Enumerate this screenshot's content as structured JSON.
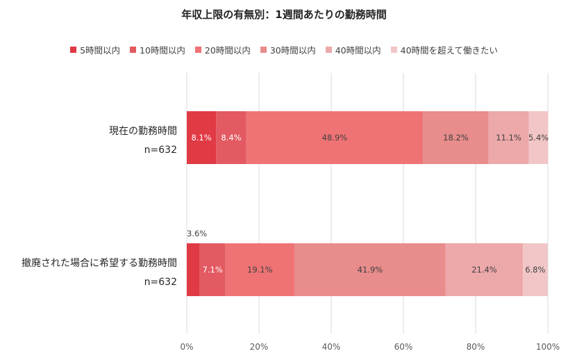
{
  "chart_data": {
    "type": "bar",
    "orientation": "horizontal-stacked-100",
    "title": "年収上限の有無別：1週間あたりの勤務時間",
    "xlim": [
      0,
      100
    ],
    "xticks": [
      "0%",
      "20%",
      "40%",
      "60%",
      "80%",
      "100%"
    ],
    "grid": true,
    "legend_position": "top",
    "categories": [
      {
        "label": "現在の勤務時間",
        "n": "n=632"
      },
      {
        "label": "撤廃された場合に希望する勤務時間",
        "n": "n=632"
      }
    ],
    "series": [
      {
        "name": "5時間以内",
        "color": "#e03a45",
        "values": [
          8.1,
          3.6
        ],
        "labels": [
          "8.1%",
          "3.6%"
        ]
      },
      {
        "name": "10時間以内",
        "color": "#e35a62",
        "values": [
          8.4,
          7.1
        ],
        "labels": [
          "8.4%",
          "7.1%"
        ]
      },
      {
        "name": "20時間以内",
        "color": "#ef7374",
        "values": [
          48.9,
          19.1
        ],
        "labels": [
          "48.9%",
          "19.1%"
        ]
      },
      {
        "name": "30時間以内",
        "color": "#e88c8c",
        "values": [
          18.2,
          41.9
        ],
        "labels": [
          "18.2%",
          "41.9%"
        ]
      },
      {
        "name": "40時間以内",
        "color": "#eda8aa",
        "values": [
          11.1,
          21.4
        ],
        "labels": [
          "11.1%",
          "21.4%"
        ]
      },
      {
        "name": "40時間を超えて働きたい",
        "color": "#f2c6c6",
        "values": [
          5.4,
          6.8
        ],
        "labels": [
          "5.4%",
          "6.8%"
        ]
      }
    ]
  }
}
